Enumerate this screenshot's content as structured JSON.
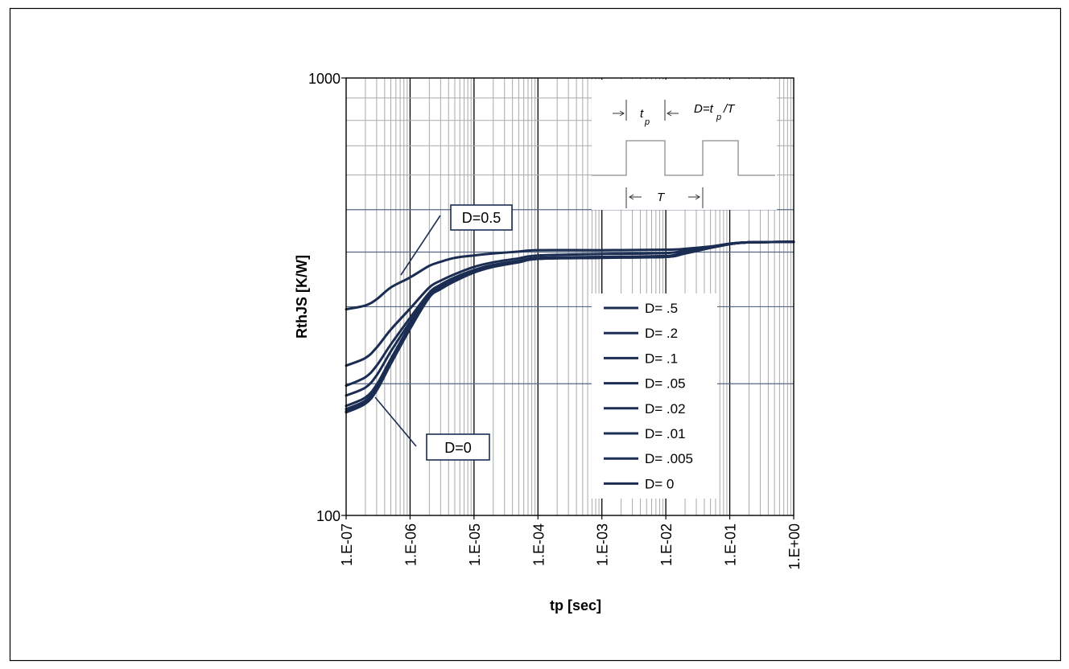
{
  "chart_data": {
    "type": "line",
    "xlabel": "tp [sec]",
    "ylabel": "RthJS [K/W]",
    "xscale": "log",
    "yscale": "log",
    "xlim": [
      1e-07,
      1
    ],
    "ylim": [
      100,
      1000
    ],
    "x_ticks": [
      1e-07,
      1e-06,
      1e-05,
      0.0001,
      0.001,
      0.01,
      0.1,
      1
    ],
    "x_tick_labels": [
      "1.E-07",
      "1.E-06",
      "1.E-05",
      "1.E-04",
      "1.E-03",
      "1.E-02",
      "1.E-01",
      "1.E+00"
    ],
    "y_ticks": [
      1000,
      100
    ],
    "y_tick_labels": [
      "1000",
      "100"
    ],
    "grid": true,
    "legend": "right",
    "x": [
      1e-07,
      2e-07,
      3e-07,
      5e-07,
      1e-06,
      2e-06,
      3e-06,
      5e-06,
      1e-05,
      2e-05,
      5e-05,
      0.0001,
      0.001,
      0.01,
      0.02,
      0.05,
      0.1,
      0.2,
      1
    ],
    "series": [
      {
        "name": "D= .5",
        "values": [
          296,
          302,
          312,
          332,
          350,
          372,
          380,
          388,
          393,
          397,
          401,
          404,
          404,
          405,
          407,
          412,
          418,
          421,
          422
        ]
      },
      {
        "name": "D= .2",
        "values": [
          220,
          229,
          242,
          266,
          297,
          332,
          344,
          356,
          370,
          379,
          387,
          393,
          396,
          398,
          403,
          411,
          418,
          421,
          422
        ]
      },
      {
        "name": "D= .1",
        "values": [
          198,
          207,
          220,
          246,
          283,
          323,
          337,
          350,
          364,
          374,
          382,
          388,
          390,
          392,
          400,
          410,
          418,
          421,
          422
        ]
      },
      {
        "name": "D= .05",
        "values": [
          188,
          196,
          209,
          237,
          277,
          320,
          334,
          348,
          362,
          373,
          381,
          387,
          390,
          391,
          399,
          410,
          417,
          421,
          422
        ]
      },
      {
        "name": "D= .02",
        "values": [
          178,
          186,
          199,
          228,
          272,
          318,
          332,
          346,
          361,
          372,
          380,
          387,
          389,
          391,
          398,
          409,
          417,
          421,
          422
        ]
      },
      {
        "name": "D= .01",
        "values": [
          175,
          183,
          196,
          225,
          270,
          317,
          331,
          345,
          360,
          371,
          380,
          386,
          389,
          390,
          398,
          409,
          417,
          421,
          422
        ]
      },
      {
        "name": "D= .005",
        "values": [
          173,
          181,
          194,
          223,
          268,
          316,
          330,
          344,
          360,
          371,
          379,
          386,
          389,
          390,
          398,
          409,
          417,
          421,
          422
        ]
      },
      {
        "name": "D= 0",
        "values": [
          172,
          180,
          193,
          222,
          267,
          315,
          329,
          343,
          359,
          370,
          379,
          386,
          388,
          390,
          397,
          409,
          417,
          421,
          422
        ]
      }
    ],
    "annotations": [
      "D=0.5",
      "D=0"
    ],
    "inset": {
      "pulse_width": "t",
      "pulse_width_sub": "p",
      "duty_cycle": "D=t",
      "duty_cycle_sub": "p",
      "duty_cycle_tail": "/T",
      "period": "T"
    },
    "colors": {
      "series": "#1b2d52",
      "major_grid": "#000000",
      "minor_grid": "#a9a9a9",
      "inset_waveform": "#8c8c8c"
    }
  }
}
